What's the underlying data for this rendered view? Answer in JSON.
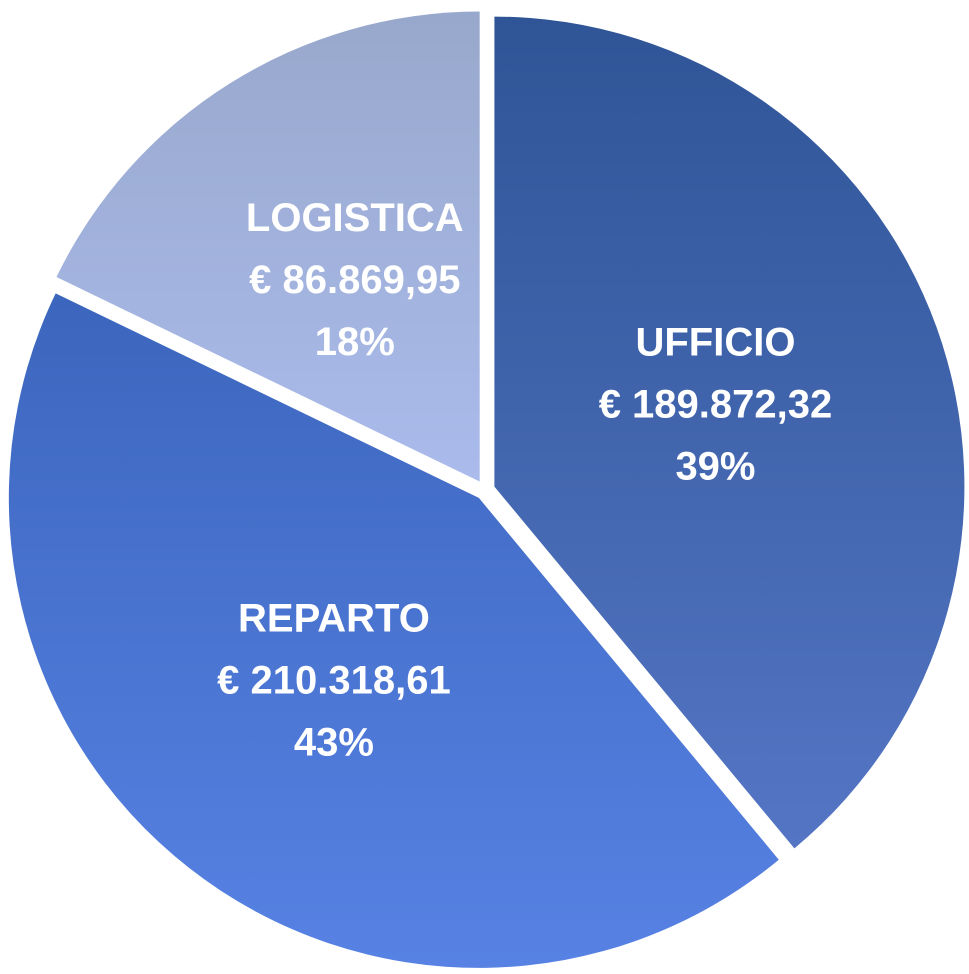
{
  "chart_data": {
    "type": "pie",
    "categories": [
      "UFFICIO",
      "REPARTO",
      "LOGISTICA"
    ],
    "values": [
      189872.32,
      210318.61,
      86869.95
    ],
    "value_labels": [
      "€ 189.872,32",
      "€ 210.318,61",
      "€ 86.869,95"
    ],
    "percentages": [
      39,
      43,
      18
    ],
    "percentage_labels": [
      "39%",
      "43%",
      "18%"
    ],
    "colors": [
      [
        "#2f5597",
        "#5475c4"
      ],
      [
        "#3c66bd",
        "#5782e4"
      ],
      [
        "#98a8cc",
        "#aabbec"
      ]
    ]
  }
}
